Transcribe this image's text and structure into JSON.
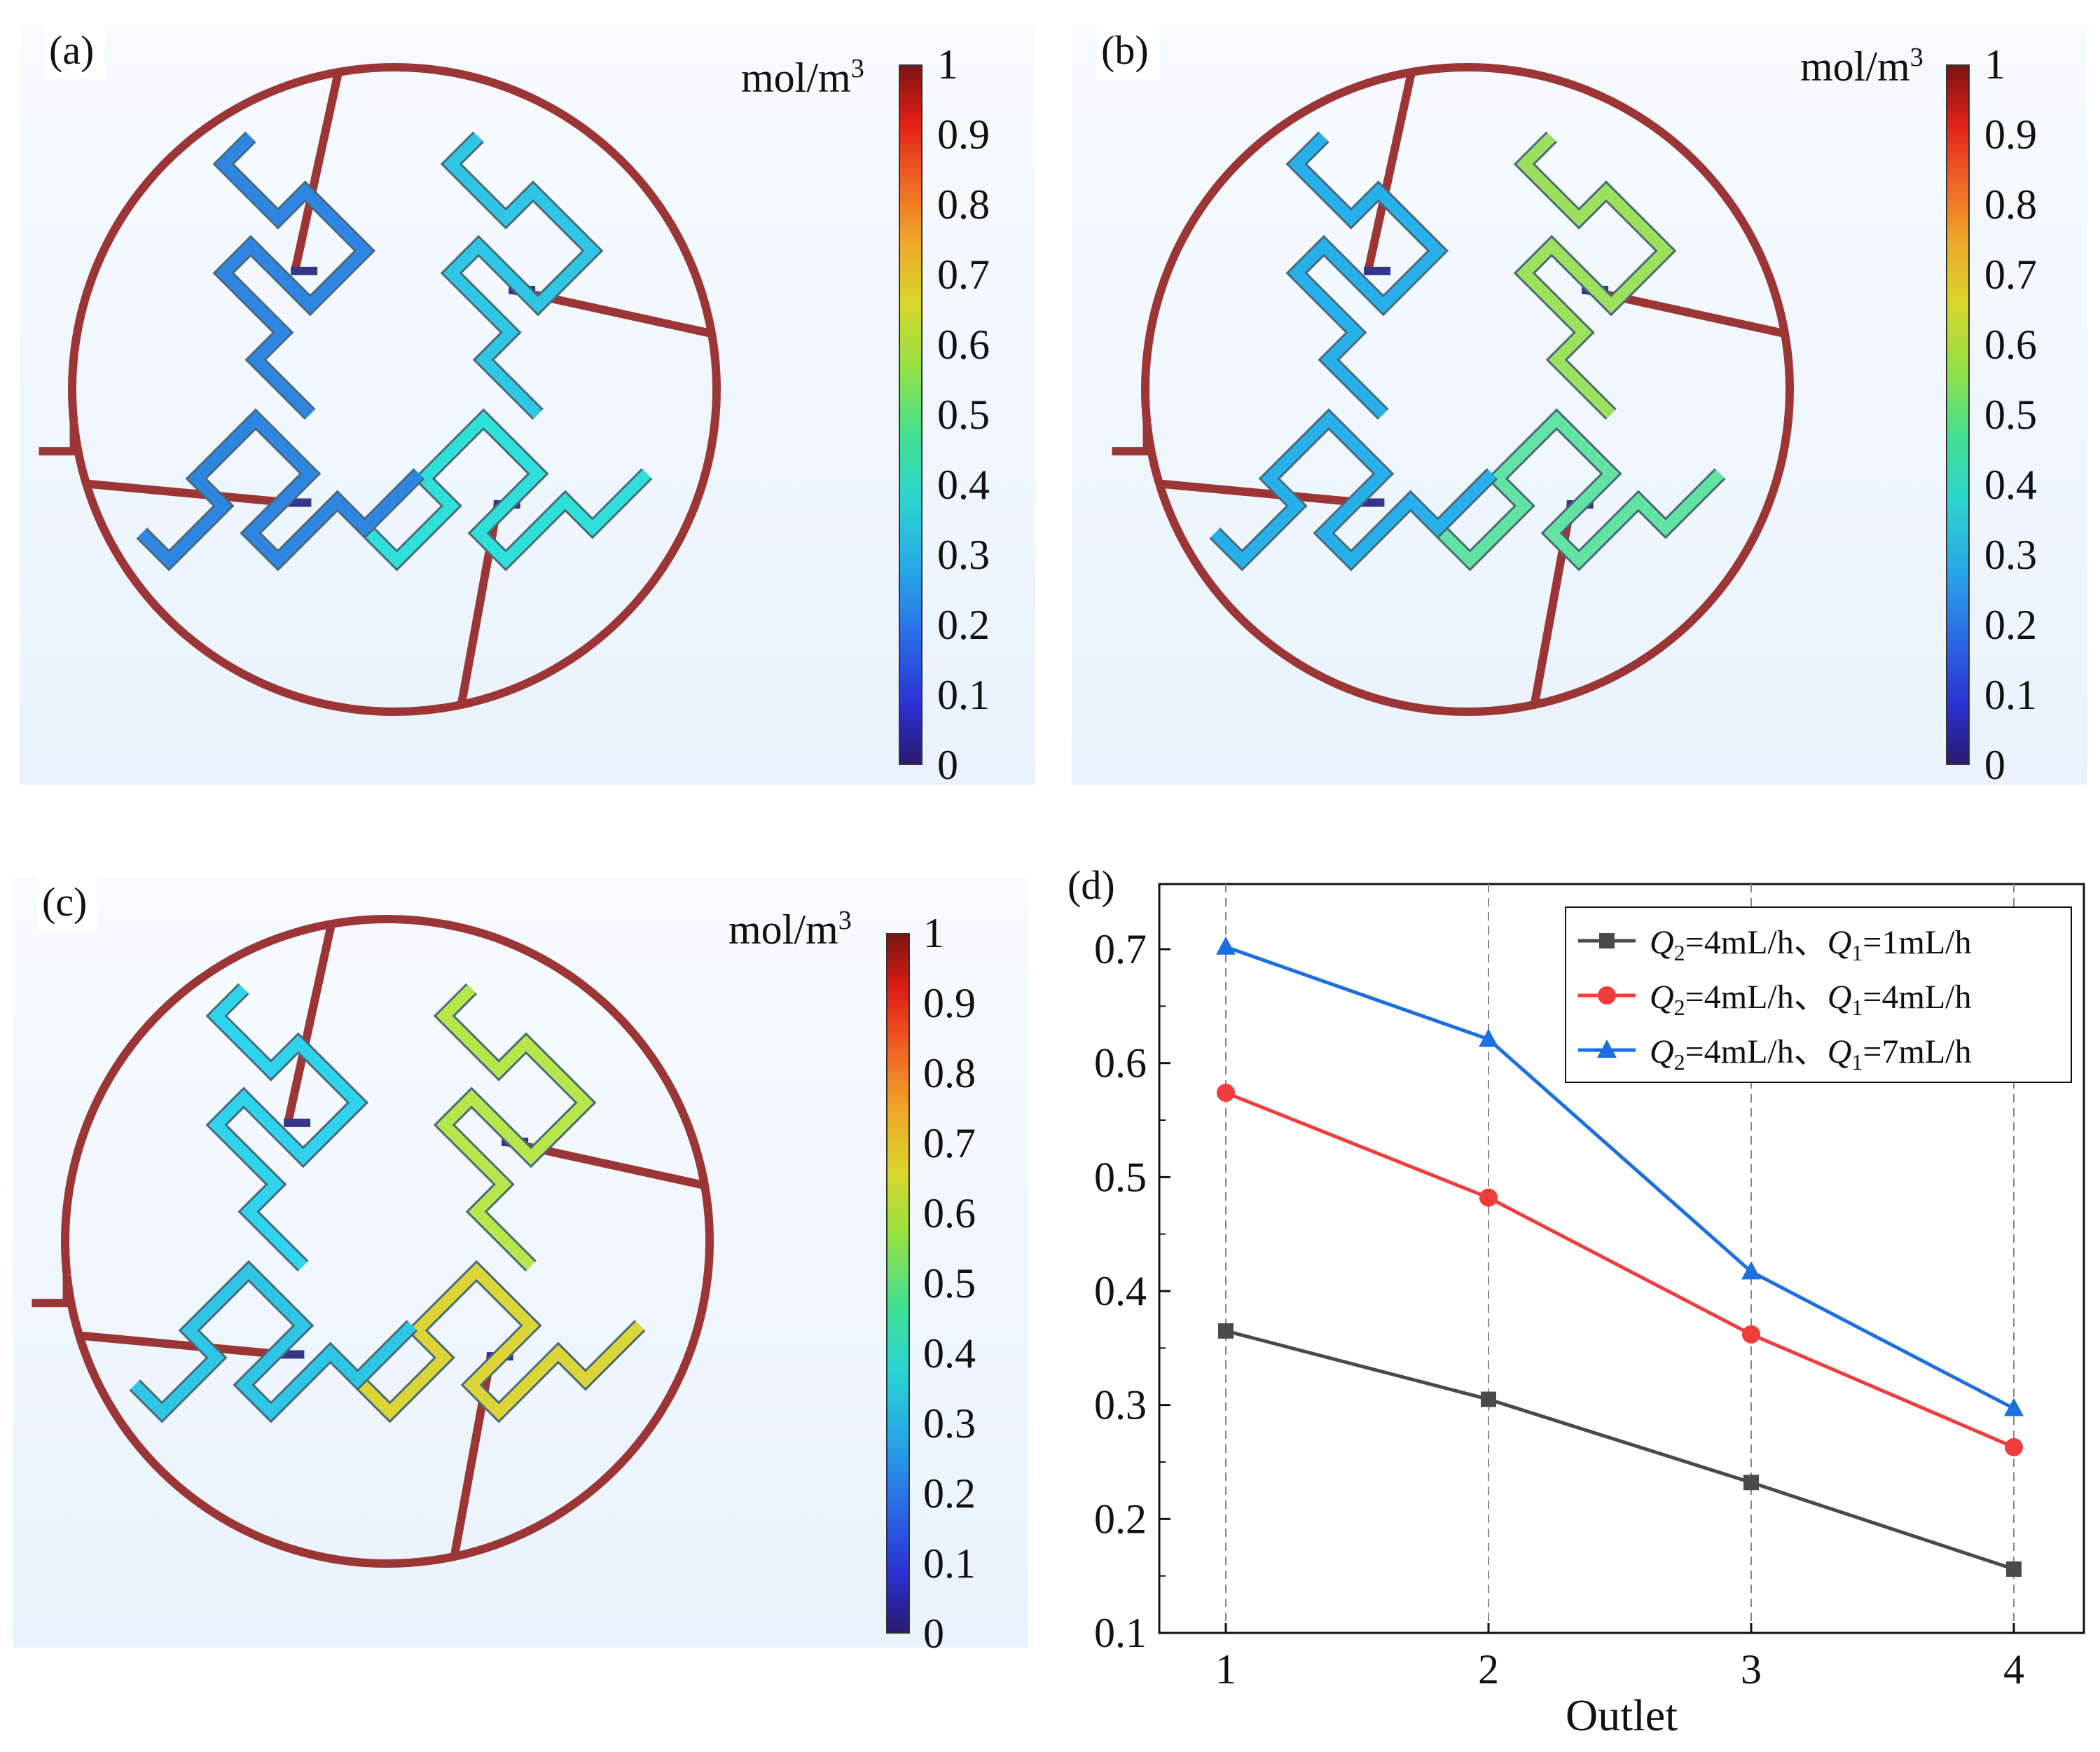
{
  "panels": [
    {
      "label": "(a)"
    },
    {
      "label": "(b)"
    },
    {
      "label": "(c)"
    },
    {
      "label": "(d)"
    }
  ],
  "colorbar": {
    "unit_prefix": "mol/m",
    "unit_power": "3",
    "ticks": [
      "1",
      "0.9",
      "0.8",
      "0.7",
      "0.6",
      "0.5",
      "0.4",
      "0.3",
      "0.2",
      "0.1",
      "0"
    ]
  },
  "colors": {
    "wall": "#9c3535",
    "a_outlets": [
      "#2f86e2",
      "#2fc6e6",
      "#2fe0d8",
      "#2f86e2"
    ],
    "b_outlets": [
      "#27b0ea",
      "#9be15c",
      "#62e3a4",
      "#27b0ea"
    ],
    "c_outlets": [
      "#2fd3ec",
      "#b7e64a",
      "#dcd537",
      "#2fc6e6"
    ]
  },
  "chart_data": {
    "type": "line",
    "categories": [
      "1",
      "2",
      "3",
      "4"
    ],
    "xlabel": "Outlet",
    "ylabel": "",
    "ylim": [
      0.1,
      0.75
    ],
    "yticks": [
      "0.1",
      "0.2",
      "0.3",
      "0.4",
      "0.5",
      "0.6",
      "0.7"
    ],
    "grid": "vertical dashed",
    "legend_placement": "top-right",
    "series": [
      {
        "name_q2": "Q",
        "name_sub2": "2",
        "name_mid": "=4mL/h、",
        "name_q1": "Q",
        "name_sub1": "1",
        "name_end": "=1mL/h",
        "color": "#4a4a4a",
        "marker": "square",
        "values": [
          0.365,
          0.305,
          0.232,
          0.156
        ]
      },
      {
        "name_q2": "Q",
        "name_sub2": "2",
        "name_mid": "=4mL/h、",
        "name_q1": "Q",
        "name_sub1": "1",
        "name_end": "=4mL/h",
        "color": "#f03c3c",
        "marker": "circle",
        "values": [
          0.574,
          0.482,
          0.362,
          0.263
        ]
      },
      {
        "name_q2": "Q",
        "name_sub2": "2",
        "name_mid": "=4mL/h、",
        "name_q1": "Q",
        "name_sub1": "1",
        "name_end": "=7mL/h",
        "color": "#1c6fe0",
        "marker": "triangle",
        "values": [
          0.702,
          0.621,
          0.417,
          0.297
        ]
      }
    ]
  }
}
